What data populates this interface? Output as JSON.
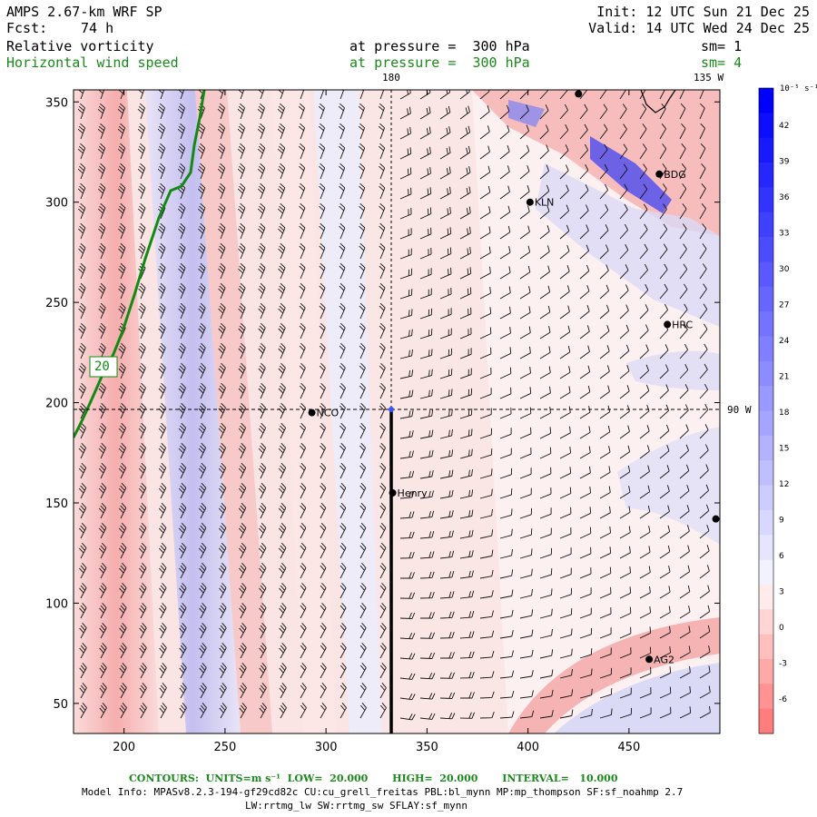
{
  "header": {
    "model": "AMPS 2.67-km WRF SP",
    "fcst_label": "Fcst:",
    "fcst_value": "74 h",
    "init": "Init: 12 UTC Sun 21 Dec 25",
    "valid": "Valid: 14 UTC Wed 24 Dec 25",
    "field1_name": "Relative vorticity",
    "field1_level": "at pressure =  300 hPa",
    "field1_sm": "sm= 1",
    "field2_name": "Horizontal wind speed",
    "field2_level": "at pressure =  300 hPa",
    "field2_sm": "sm= 4"
  },
  "map": {
    "meridian_label_180": "180",
    "meridian_label_135w": "135 W",
    "meridian_label_90w": "90 W",
    "contour_label": "20",
    "x_ticks": [
      200,
      250,
      300,
      350,
      400,
      450
    ],
    "y_ticks": [
      50,
      100,
      150,
      200,
      250,
      300,
      350
    ],
    "xlim": [
      175,
      495
    ],
    "ylim": [
      35,
      356
    ],
    "stations": [
      {
        "name": "NCO",
        "x": 293,
        "y": 195
      },
      {
        "name": "Henry",
        "x": 333,
        "y": 155
      },
      {
        "name": "KLN",
        "x": 401,
        "y": 300
      },
      {
        "name": "BDG",
        "x": 465,
        "y": 314
      },
      {
        "name": "HRC",
        "x": 469,
        "y": 239
      },
      {
        "name": "AG2",
        "x": 460,
        "y": 72
      },
      {
        "name": "",
        "x": 493,
        "y": 142
      },
      {
        "name": "",
        "x": 425,
        "y": 354
      }
    ]
  },
  "colorbar": {
    "units": "10⁻⁵ s⁻¹",
    "labels": [
      "42",
      "39",
      "36",
      "33",
      "30",
      "27",
      "24",
      "21",
      "18",
      "15",
      "12",
      "9",
      "6",
      "3",
      "0",
      "-3",
      "-6"
    ]
  },
  "footer": {
    "contours": "CONTOURS:  UNITS=m s⁻¹  LOW=  20.000       HIGH=  20.000       INTERVAL=   10.000",
    "model_info": "Model Info: MPASv8.2.3-194-gf29cd82c CU:cu_grell_freitas PBL:bl_mynn MP:mp_thompson SF:sf_noahmp 2.7",
    "model_info2": "LW:rrtmg_lw SW:rrtmg_sw SFLAY:sf_mynn"
  },
  "colors": {
    "positive_blue": "#0000ff",
    "negative_red": "#f08080",
    "contour_green": "#138a13",
    "label_green": "#1a8a1a"
  }
}
